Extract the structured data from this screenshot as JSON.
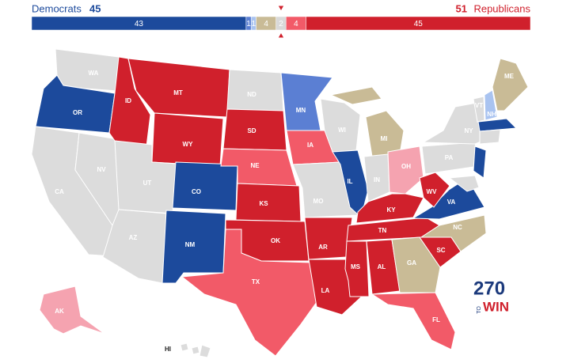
{
  "header": {
    "dem_label": "Democrats",
    "dem_total": 45,
    "rep_total": 51,
    "rep_label": "Republicans"
  },
  "bar": {
    "segments": [
      {
        "value": 43,
        "color": "#1c4a9c"
      },
      {
        "value": 1,
        "color": "#5b7fd3"
      },
      {
        "value": 1,
        "color": "#a9c3f0"
      },
      {
        "value": 4,
        "color": "#c9bb96"
      },
      {
        "value": 2,
        "color": "#d9d9d9"
      },
      {
        "value": 4,
        "color": "#f25a68"
      },
      {
        "value": 45,
        "color": "#d0202c"
      }
    ]
  },
  "states": [
    {
      "label": "WA",
      "color": "#dcdcdc"
    },
    {
      "label": "OR",
      "color": "#1c4a9c"
    },
    {
      "label": "CA",
      "color": "#dcdcdc"
    },
    {
      "label": "NV",
      "color": "#dcdcdc"
    },
    {
      "label": "ID",
      "color": "#d0202c"
    },
    {
      "label": "MT",
      "color": "#d0202c"
    },
    {
      "label": "WY",
      "color": "#d0202c"
    },
    {
      "label": "UT",
      "color": "#dcdcdc"
    },
    {
      "label": "AZ",
      "color": "#dcdcdc"
    },
    {
      "label": "CO",
      "color": "#1c4a9c"
    },
    {
      "label": "NM",
      "color": "#1c4a9c"
    },
    {
      "label": "ND",
      "color": "#dcdcdc"
    },
    {
      "label": "SD",
      "color": "#d0202c"
    },
    {
      "label": "NE",
      "color": "#f25a68"
    },
    {
      "label": "KS",
      "color": "#d0202c"
    },
    {
      "label": "OK",
      "color": "#d0202c"
    },
    {
      "label": "TX",
      "color": "#f25a68"
    },
    {
      "label": "MN",
      "color": "#5b7fd3"
    },
    {
      "label": "IA",
      "color": "#f25a68"
    },
    {
      "label": "MO",
      "color": "#dcdcdc"
    },
    {
      "label": "AR",
      "color": "#d0202c"
    },
    {
      "label": "LA",
      "color": "#d0202c"
    },
    {
      "label": "WI",
      "color": "#dcdcdc"
    },
    {
      "label": "IL",
      "color": "#1c4a9c"
    },
    {
      "label": "MI",
      "color": "#c9bb96"
    },
    {
      "label": "IN",
      "color": "#dcdcdc"
    },
    {
      "label": "OH",
      "color": "#f5a3b0"
    },
    {
      "label": "KY",
      "color": "#d0202c"
    },
    {
      "label": "TN",
      "color": "#d0202c"
    },
    {
      "label": "MS",
      "color": "#d0202c"
    },
    {
      "label": "AL",
      "color": "#d0202c"
    },
    {
      "label": "GA",
      "color": "#c9bb96"
    },
    {
      "label": "FL",
      "color": "#f25a68"
    },
    {
      "label": "SC",
      "color": "#d0202c"
    },
    {
      "label": "NC",
      "color": "#c9bb96"
    },
    {
      "label": "VA",
      "color": "#1c4a9c"
    },
    {
      "label": "WV",
      "color": "#d0202c"
    },
    {
      "label": "PA",
      "color": "#dcdcdc"
    },
    {
      "label": "NY",
      "color": "#dcdcdc"
    },
    {
      "label": null,
      "color": "#1c4a9c"
    },
    {
      "label": null,
      "color": "#dcdcdc"
    },
    {
      "label": "VT",
      "color": "#dcdcdc"
    },
    {
      "label": "NH",
      "color": "#a9c3f0"
    },
    {
      "label": "ME",
      "color": "#c9bb96"
    },
    {
      "label": null,
      "color": "#1c4a9c"
    },
    {
      "label": null,
      "color": "#dcdcdc"
    },
    {
      "label": "AK",
      "color": "#f5a3b0"
    },
    {
      "label": "HI",
      "color": "#dcdcdc"
    }
  ],
  "logo": {
    "number": "270",
    "to": "TO",
    "win": "WIN"
  }
}
